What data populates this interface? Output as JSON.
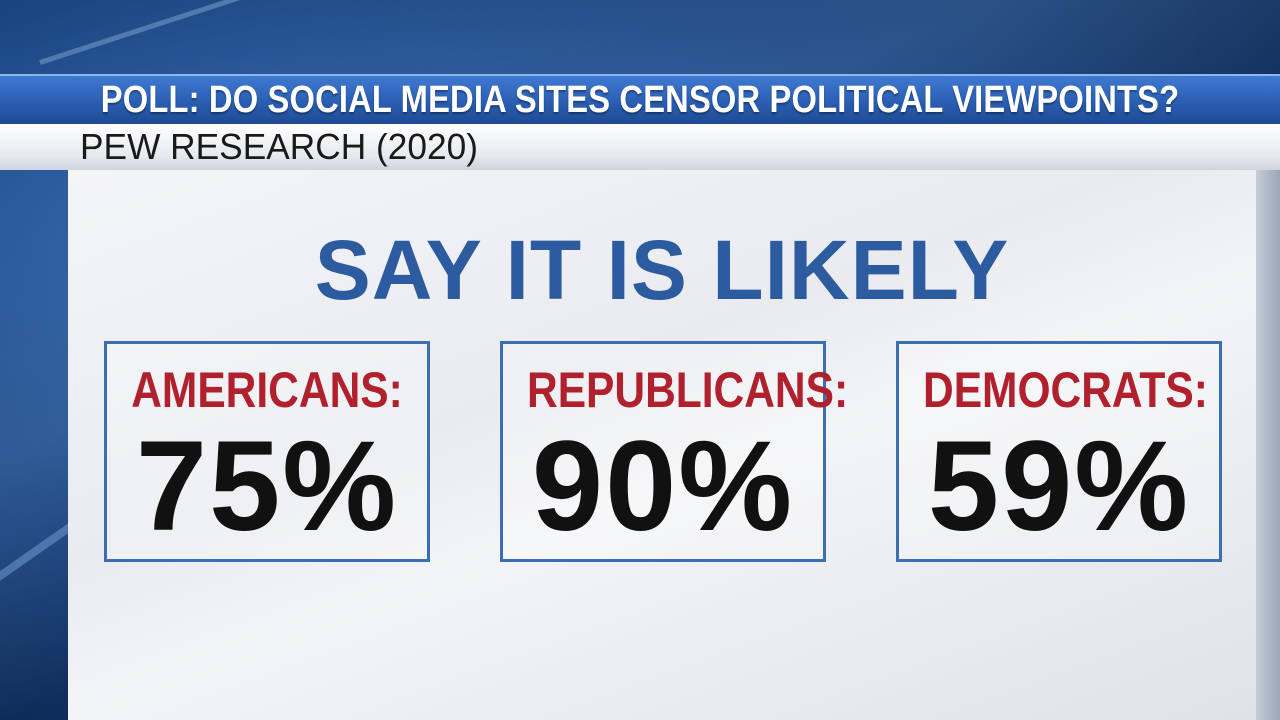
{
  "banner": {
    "title": "POLL: DO SOCIAL MEDIA SITES CENSOR POLITICAL VIEWPOINTS?",
    "source": "PEW RESEARCH (2020)"
  },
  "headline": "SAY IT IS LIKELY",
  "stats": [
    {
      "label": "AMERICANS:",
      "value": "75%"
    },
    {
      "label": "REPUBLICANS:",
      "value": "90%"
    },
    {
      "label": "DEMOCRATS:",
      "value": "59%"
    }
  ],
  "colors": {
    "title_bar": "#2a5eb3",
    "headline": "#2c5b9f",
    "label": "#b0202d",
    "value": "#111111",
    "box_border": "#3c6db5"
  }
}
